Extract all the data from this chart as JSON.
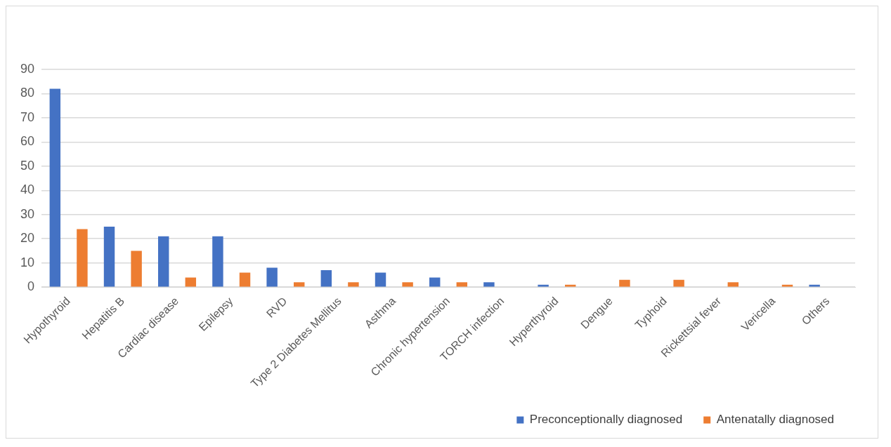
{
  "chart_data": {
    "type": "bar",
    "categories": [
      "Hypothyroid",
      "Hepatitis B",
      "Cardiac disease",
      "Epilepsy",
      "RVD",
      "Type 2 Diabetes Mellitus",
      "Asthma",
      "Chronic hypertension",
      "TORCH infection",
      "Hyperthyroid",
      "Dengue",
      "Typhoid",
      "Rickettsial fever",
      "Vericella",
      "Others"
    ],
    "series": [
      {
        "name": "Preconceptionally diagnosed",
        "color": "#4472c4",
        "values": [
          82,
          25,
          21,
          21,
          8,
          7,
          6,
          4,
          2,
          1,
          0,
          0,
          0,
          0,
          1
        ]
      },
      {
        "name": "Antenatally diagnosed",
        "color": "#ed7d31",
        "values": [
          24,
          15,
          4,
          6,
          2,
          2,
          2,
          2,
          0,
          1,
          3,
          3,
          2,
          1,
          0
        ]
      }
    ],
    "ylim": [
      0,
      90
    ],
    "yticks": [
      0,
      10,
      20,
      30,
      40,
      50,
      60,
      70,
      80,
      90
    ],
    "grid": "y",
    "legend": "bottom right"
  }
}
